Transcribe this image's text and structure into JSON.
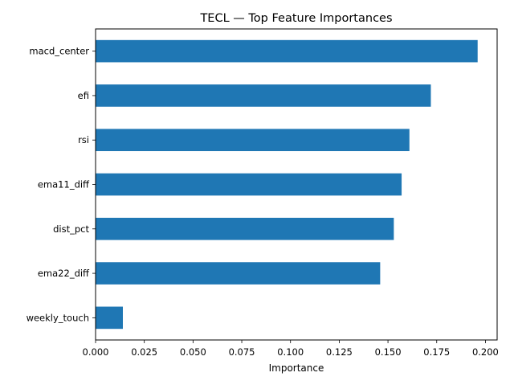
{
  "chart_data": {
    "type": "bar",
    "orientation": "horizontal",
    "title": "TECL — Top Feature Importances",
    "xlabel": "Importance",
    "ylabel": "",
    "categories": [
      "macd_center",
      "efi",
      "rsi",
      "ema11_diff",
      "dist_pct",
      "ema22_diff",
      "weekly_touch"
    ],
    "values": [
      0.196,
      0.172,
      0.161,
      0.157,
      0.153,
      0.146,
      0.014
    ],
    "xlim": [
      0.0,
      0.206
    ],
    "xticks": [
      0.0,
      0.025,
      0.05,
      0.075,
      0.1,
      0.125,
      0.15,
      0.175,
      0.2
    ],
    "xtick_labels": [
      "0.000",
      "0.025",
      "0.050",
      "0.075",
      "0.100",
      "0.125",
      "0.150",
      "0.175",
      "0.200"
    ],
    "grid": false,
    "legend": "none",
    "bar_color": "#1f77b4"
  }
}
